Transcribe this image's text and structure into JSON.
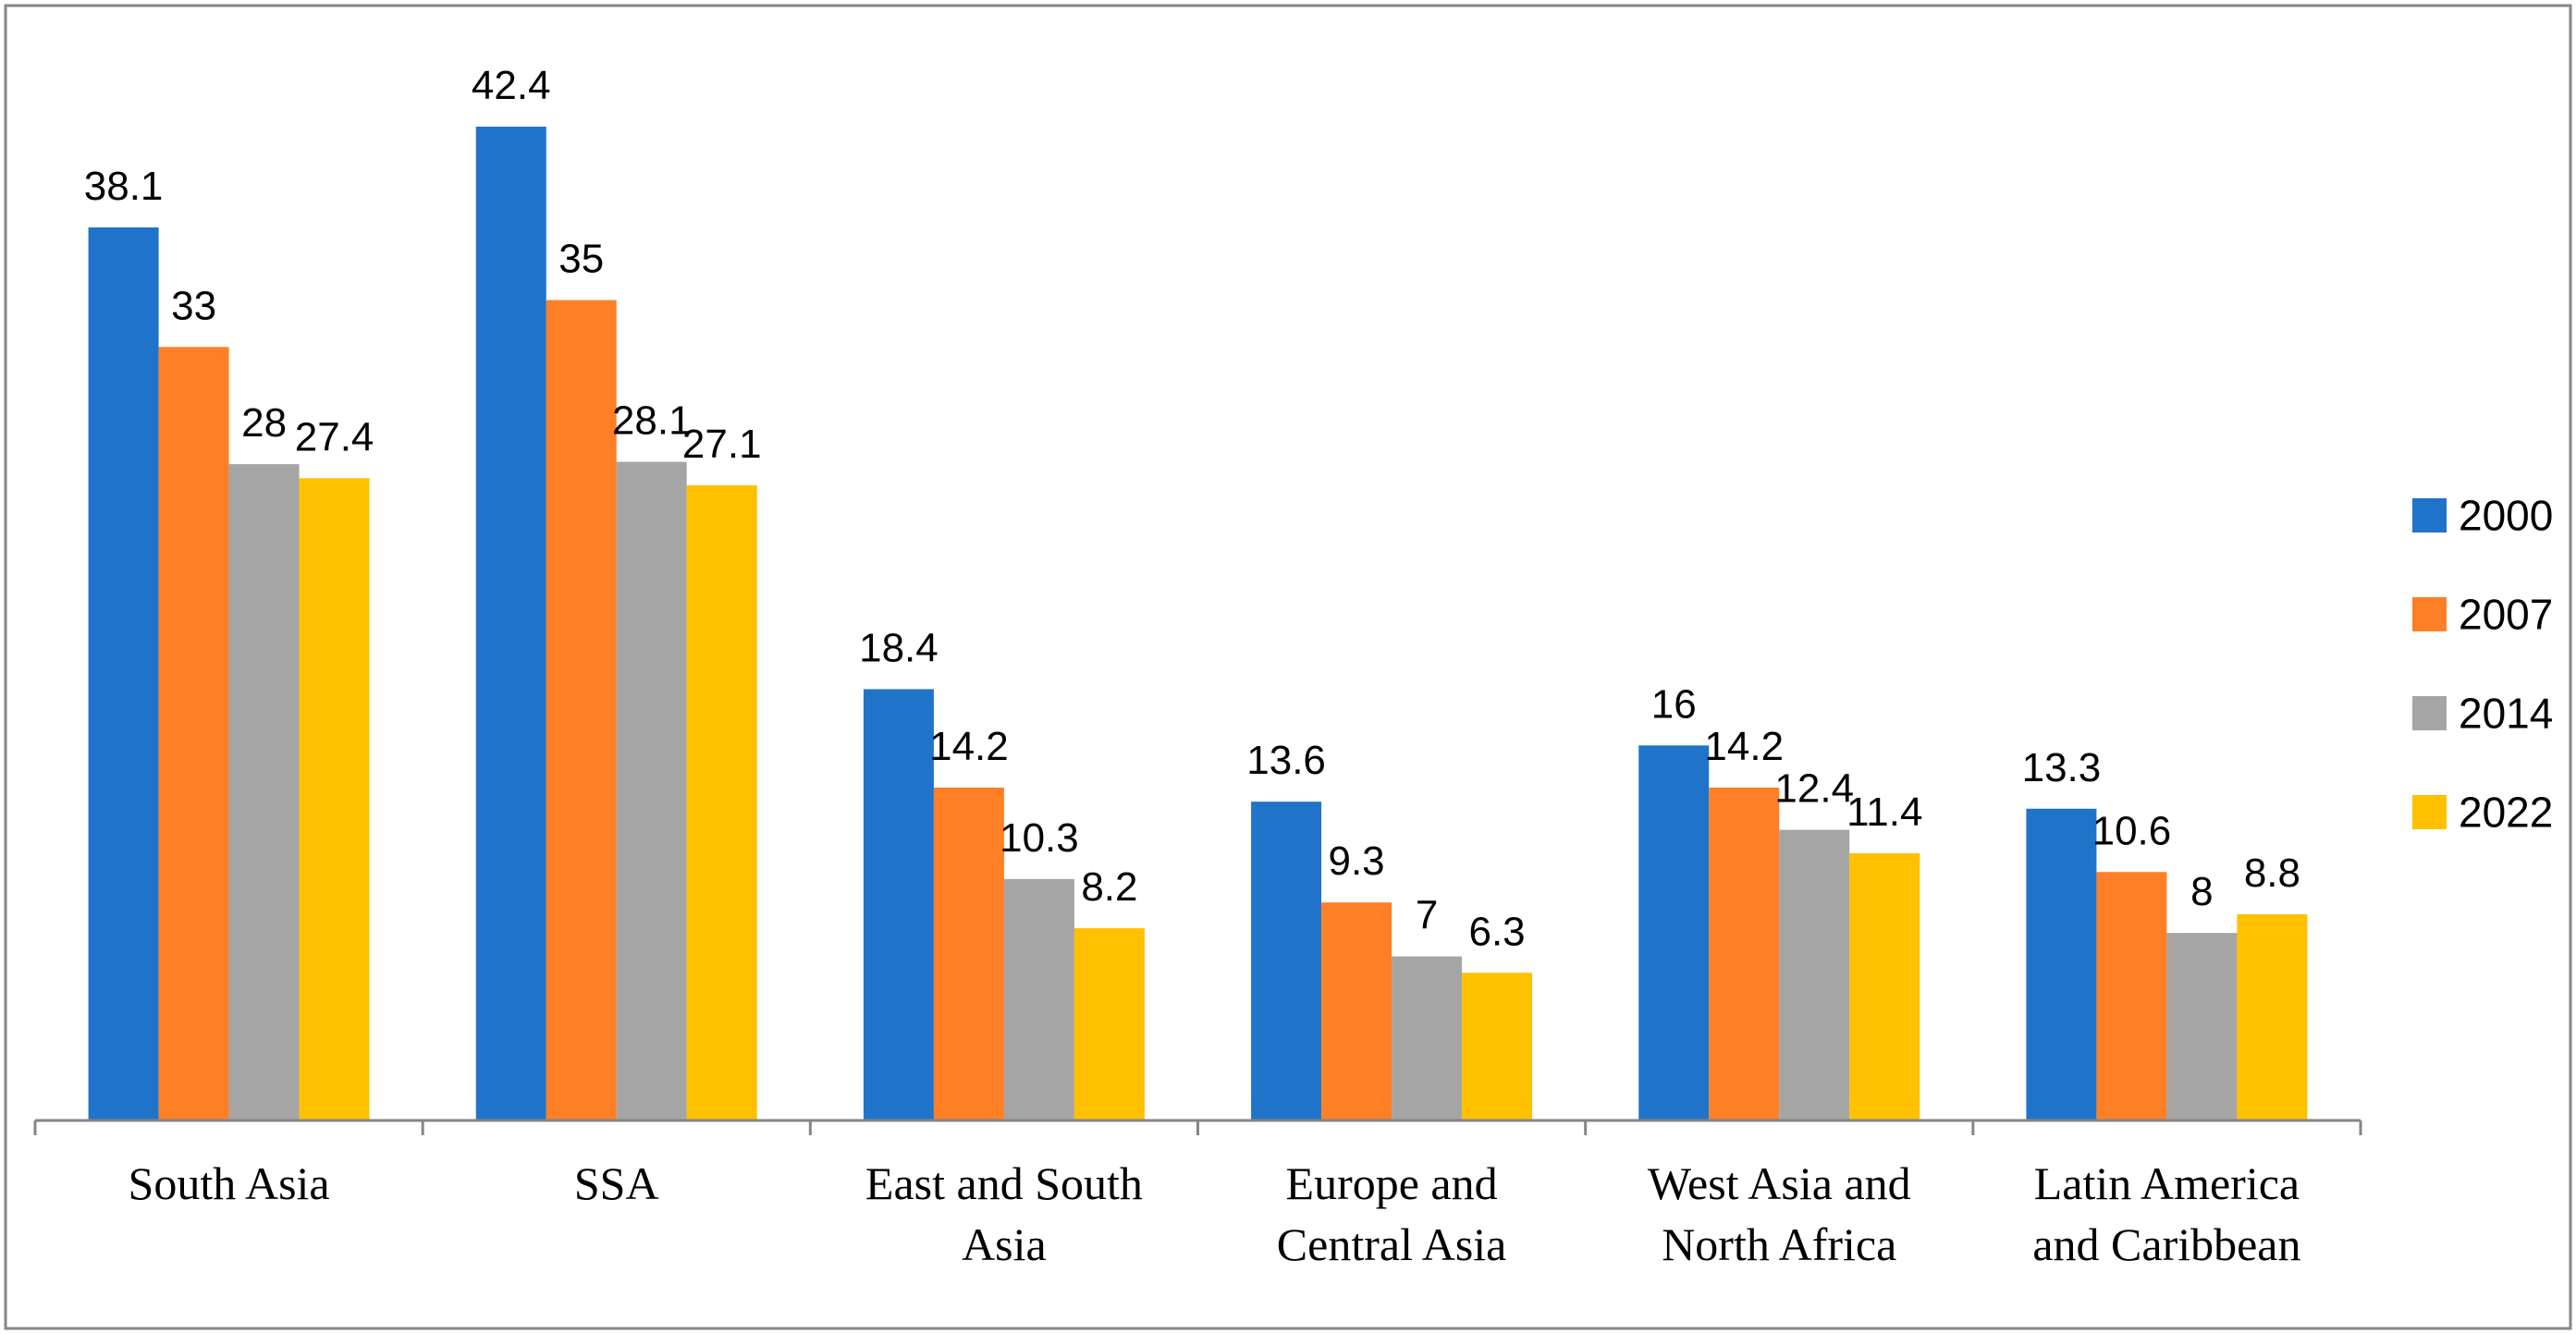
{
  "chart_data": {
    "type": "bar",
    "title": "",
    "xlabel": "",
    "ylabel": "",
    "ylim": [
      0,
      45
    ],
    "grid": false,
    "legend": "right",
    "categories": [
      [
        "South Asia"
      ],
      [
        "SSA"
      ],
      [
        "East and South",
        "Asia"
      ],
      [
        "Europe and",
        "Central Asia"
      ],
      [
        "West Asia and",
        "North Africa"
      ],
      [
        "Latin America",
        "and Caribbean"
      ]
    ],
    "series": [
      {
        "name": "2000",
        "color": "#1F74C9",
        "values": [
          38.1,
          42.4,
          18.4,
          13.6,
          16,
          13.3
        ],
        "labels": [
          "38.1",
          "42.4",
          "18.4",
          "13.6",
          "16",
          "13.3"
        ]
      },
      {
        "name": "2007",
        "color": "#FF7F27",
        "values": [
          33,
          35,
          14.2,
          9.3,
          14.2,
          10.6
        ],
        "labels": [
          "33",
          "35",
          "14.2",
          "9.3",
          "14.2",
          "10.6"
        ]
      },
      {
        "name": "2014",
        "color": "#A5A5A5",
        "values": [
          28,
          28.1,
          10.3,
          7,
          12.4,
          8
        ],
        "labels": [
          "28",
          "28.1",
          "10.3",
          "7",
          "12.4",
          "8"
        ]
      },
      {
        "name": "2022",
        "color": "#FFC000",
        "values": [
          27.4,
          27.1,
          8.2,
          6.3,
          11.4,
          8.8
        ],
        "labels": [
          "27.4",
          "27.1",
          "8.2",
          "6.3",
          "11.4",
          "8.8"
        ]
      }
    ]
  }
}
